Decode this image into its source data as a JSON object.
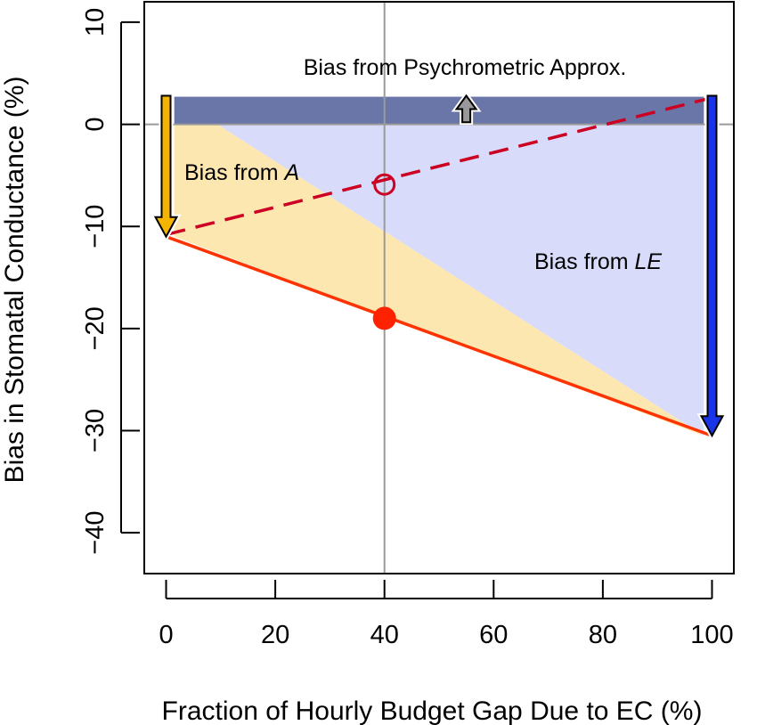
{
  "chart_data": {
    "type": "line",
    "xlabel": "Fraction of Hourly Budget Gap Due to EC (%)",
    "ylabel": "Bias in Stomatal Conductance (%)",
    "xlim": [
      -4,
      104
    ],
    "ylim": [
      -44,
      12
    ],
    "x_ticks": [
      0,
      20,
      40,
      60,
      80,
      100
    ],
    "y_ticks": [
      10,
      0,
      -10,
      -20,
      -30,
      -40
    ],
    "x_tick_labels": [
      "0",
      "20",
      "40",
      "60",
      "80",
      "100"
    ],
    "y_tick_labels": [
      "10",
      "0",
      "−10",
      "−20",
      "−30",
      "−40"
    ],
    "reference_lines": {
      "vertical_x": 40,
      "horizontal_y": 0
    },
    "series": [
      {
        "style": "solid",
        "color": "#ff3300",
        "points": [
          [
            0,
            -11
          ],
          [
            100,
            -30.5
          ]
        ]
      },
      {
        "style": "dashed",
        "color": "#cc0022",
        "points": [
          [
            0,
            -10.8
          ],
          [
            100,
            2.6
          ]
        ]
      }
    ],
    "markers": [
      {
        "x": 40,
        "y": -19,
        "style": "filled-circle",
        "color": "#ff2200"
      },
      {
        "x": 40,
        "y": -5.9,
        "style": "open-circle",
        "color": "#cc0022"
      }
    ],
    "regions": [
      {
        "name": "psychrometric",
        "color": "#6b76a8",
        "polygon": [
          [
            1.5,
            2.7
          ],
          [
            98.5,
            2.7
          ],
          [
            98.5,
            0
          ],
          [
            1.5,
            0
          ]
        ]
      },
      {
        "name": "A",
        "color": "#fde7b0",
        "polygon": [
          [
            1.5,
            2.7
          ],
          [
            1.5,
            -11
          ],
          [
            98.5,
            -30.5
          ]
        ]
      },
      {
        "name": "LE",
        "color": "#d8dcfa",
        "polygon": [
          [
            1.5,
            2.7
          ],
          [
            98.5,
            2.7
          ],
          [
            98.5,
            -30.5
          ]
        ]
      }
    ],
    "arrows": [
      {
        "name": "A",
        "color": "#f5b400",
        "from": [
          0,
          2.8
        ],
        "to": [
          0,
          -11
        ]
      },
      {
        "name": "LE",
        "color": "#1a35e8",
        "from": [
          100,
          2.8
        ],
        "to": [
          100,
          -30.5
        ]
      },
      {
        "name": "psychrometric",
        "color": "#999999",
        "from": [
          55,
          0.2
        ],
        "to": [
          55,
          2.8
        ]
      }
    ],
    "annotations": {
      "psychrometric": "Bias from Psychrometric Approx.",
      "a_prefix": "Bias from ",
      "a_var": "A",
      "le_prefix": "Bias from ",
      "le_var": "LE"
    }
  }
}
